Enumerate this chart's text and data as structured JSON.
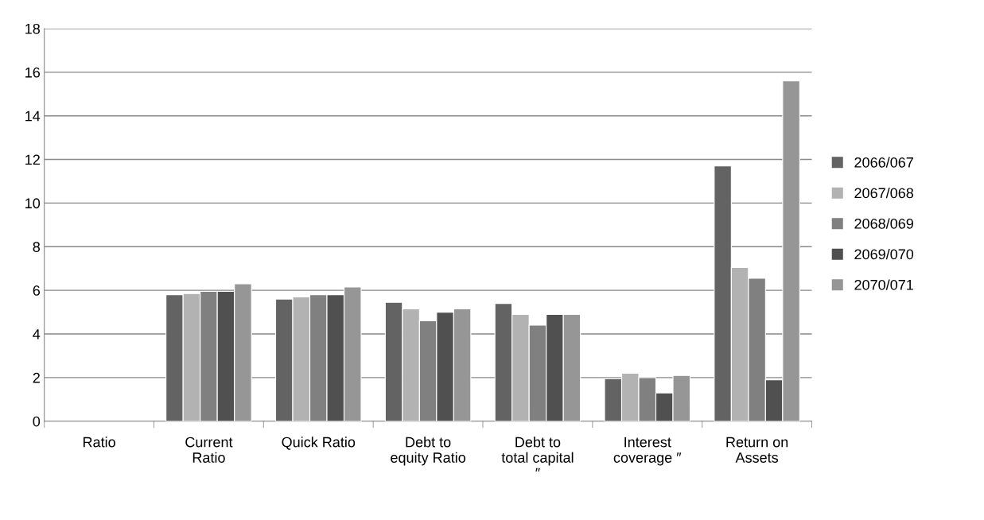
{
  "chart_data": {
    "type": "bar",
    "categories": [
      "Ratio",
      "Current\nRatio",
      "Quick Ratio",
      "Debt to\nequity Ratio",
      "Debt to\ntotal capital\n″",
      "Interest\ncoverage ″",
      "Return on\nAssets"
    ],
    "series": [
      {
        "name": "2066/067",
        "color": "#636363",
        "values": [
          null,
          5.8,
          5.6,
          5.45,
          5.4,
          1.95,
          11.7
        ]
      },
      {
        "name": "2067/068",
        "color": "#b2b2b2",
        "values": [
          null,
          5.85,
          5.7,
          5.15,
          4.9,
          2.2,
          7.05
        ]
      },
      {
        "name": "2068/069",
        "color": "#808080",
        "values": [
          null,
          5.95,
          5.8,
          4.6,
          4.4,
          2.0,
          6.55
        ]
      },
      {
        "name": "2069/070",
        "color": "#505050",
        "values": [
          null,
          5.95,
          5.8,
          5.0,
          4.9,
          1.3,
          1.9
        ]
      },
      {
        "name": "2070/071",
        "color": "#969696",
        "values": [
          null,
          6.3,
          6.15,
          5.15,
          4.9,
          2.1,
          15.6
        ]
      }
    ],
    "ylim": [
      0,
      18
    ],
    "yticks": [
      0,
      2,
      4,
      6,
      8,
      10,
      12,
      14,
      16,
      18
    ],
    "grid": "y",
    "legend": "right"
  }
}
